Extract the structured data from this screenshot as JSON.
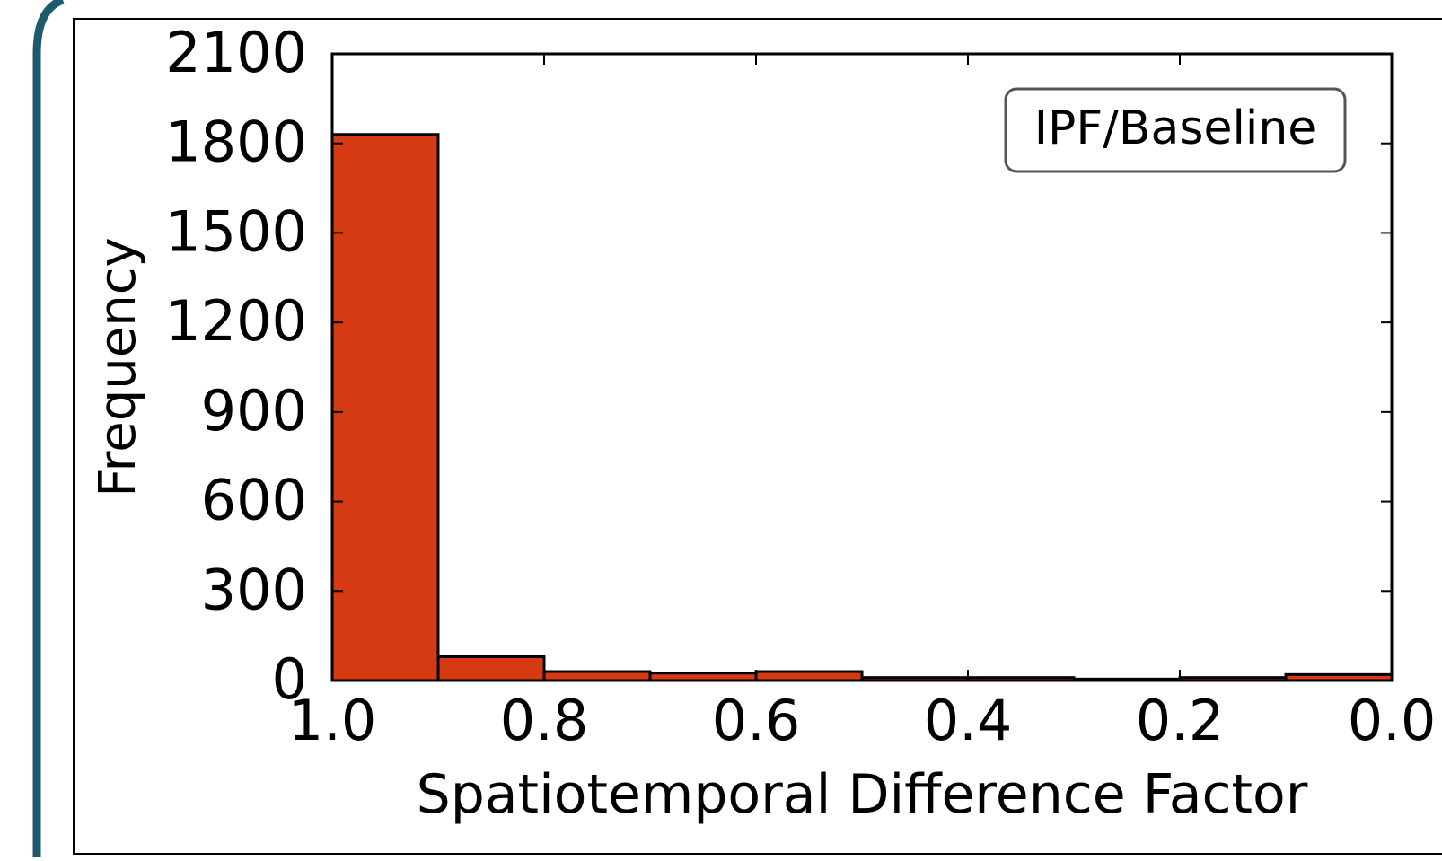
{
  "chart_data": {
    "type": "histogram",
    "x_label": "Spatiotemporal Difference Factor",
    "y_label": "Frequency",
    "annotation": "IPF/Baseline",
    "bins": [
      1.0,
      0.9,
      0.8,
      0.7,
      0.6,
      0.5,
      0.4,
      0.3,
      0.2,
      0.1,
      0.0
    ],
    "values": [
      1830,
      80,
      30,
      25,
      30,
      10,
      10,
      5,
      10,
      20
    ],
    "color": "#d63a12",
    "xlim": [
      1,
      0
    ],
    "xticks": [
      {
        "value": 1,
        "label": "1.0"
      },
      0.8,
      0.6,
      0.4,
      0.2,
      {
        "value": 0,
        "label": "0.0"
      }
    ],
    "ylim": [
      0,
      2100
    ],
    "yticks": [
      0,
      300,
      600,
      900,
      1200,
      1500,
      1800,
      2100
    ]
  }
}
